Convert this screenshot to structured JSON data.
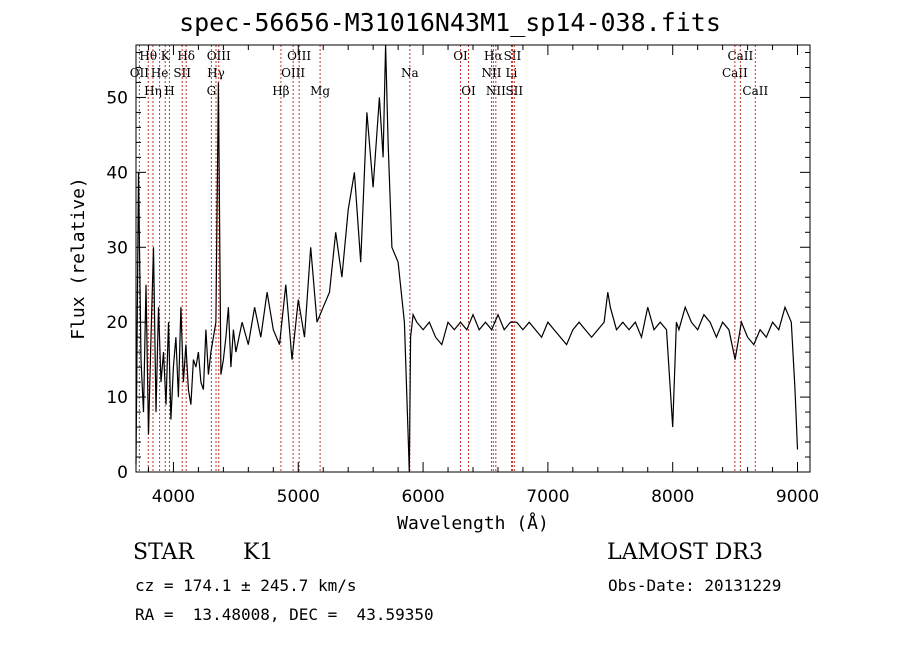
{
  "chart_data": {
    "type": "line",
    "title": "spec-56656-M31016N43M1_sp14-038.fits",
    "xlabel": "Wavelength (Å)",
    "ylabel": "Flux (relative)",
    "xlim": [
      3700,
      9100
    ],
    "ylim": [
      0,
      57
    ],
    "xticks": [
      4000,
      5000,
      6000,
      7000,
      8000,
      9000
    ],
    "yticks": [
      0,
      10,
      20,
      30,
      40,
      50
    ],
    "series": [
      {
        "name": "flux",
        "x": [
          3700,
          3720,
          3740,
          3760,
          3780,
          3800,
          3820,
          3840,
          3860,
          3880,
          3900,
          3920,
          3940,
          3960,
          3980,
          4000,
          4020,
          4040,
          4060,
          4080,
          4100,
          4120,
          4140,
          4160,
          4180,
          4200,
          4220,
          4240,
          4260,
          4280,
          4300,
          4320,
          4340,
          4360,
          4380,
          4400,
          4420,
          4440,
          4460,
          4480,
          4500,
          4550,
          4600,
          4650,
          4700,
          4750,
          4800,
          4850,
          4900,
          4950,
          5000,
          5050,
          5100,
          5150,
          5200,
          5250,
          5300,
          5350,
          5400,
          5450,
          5500,
          5550,
          5600,
          5650,
          5680,
          5700,
          5720,
          5750,
          5800,
          5850,
          5880,
          5890,
          5900,
          5920,
          5950,
          6000,
          6050,
          6100,
          6150,
          6200,
          6250,
          6300,
          6350,
          6400,
          6450,
          6500,
          6550,
          6600,
          6650,
          6700,
          6750,
          6800,
          6850,
          6900,
          6950,
          7000,
          7050,
          7100,
          7150,
          7200,
          7250,
          7300,
          7350,
          7400,
          7450,
          7480,
          7500,
          7550,
          7600,
          7650,
          7700,
          7750,
          7800,
          7850,
          7900,
          7950,
          8000,
          8030,
          8050,
          8100,
          8150,
          8200,
          8250,
          8300,
          8350,
          8400,
          8450,
          8500,
          8550,
          8600,
          8650,
          8700,
          8750,
          8800,
          8850,
          8900,
          8950,
          8980,
          9000
        ],
        "values": [
          1,
          40,
          15,
          8,
          25,
          5,
          18,
          30,
          8,
          22,
          12,
          16,
          9,
          20,
          7,
          14,
          18,
          10,
          22,
          12,
          17,
          11,
          9,
          15,
          14,
          16,
          12,
          11,
          19,
          13,
          16,
          18,
          20,
          52,
          13,
          15,
          18,
          22,
          14,
          19,
          16,
          20,
          17,
          22,
          18,
          24,
          19,
          17,
          25,
          15,
          23,
          18,
          30,
          20,
          22,
          24,
          32,
          26,
          35,
          40,
          28,
          48,
          38,
          50,
          42,
          57,
          44,
          30,
          28,
          20,
          5,
          0,
          18,
          21,
          20,
          19,
          20,
          18,
          17,
          20,
          19,
          20,
          19,
          21,
          19,
          20,
          19,
          21,
          19,
          20,
          20,
          19,
          20,
          19,
          18,
          20,
          19,
          18,
          17,
          19,
          20,
          19,
          18,
          19,
          20,
          24,
          22,
          19,
          20,
          19,
          20,
          18,
          22,
          19,
          20,
          19,
          6,
          20,
          19,
          22,
          20,
          19,
          21,
          20,
          18,
          20,
          19,
          15,
          20,
          18,
          17,
          19,
          18,
          20,
          19,
          22,
          20,
          11,
          3
        ]
      }
    ],
    "lines": [
      {
        "name": "OII",
        "x": 3727,
        "row": 2
      },
      {
        "name": "Hθ",
        "x": 3798,
        "row": 1
      },
      {
        "name": "Hη",
        "x": 3836,
        "row": 3
      },
      {
        "name": "K",
        "x": 3934,
        "row": 1
      },
      {
        "name": "He",
        "x": 3889,
        "row": 2
      },
      {
        "name": "H",
        "x": 3968,
        "row": 3
      },
      {
        "name": "SII",
        "x": 4070,
        "row": 2
      },
      {
        "name": "Hδ",
        "x": 4102,
        "row": 1
      },
      {
        "name": "G",
        "x": 4304,
        "row": 3
      },
      {
        "name": "Hγ",
        "x": 4341,
        "row": 2
      },
      {
        "name": "OIII",
        "x": 4363,
        "row": 1
      },
      {
        "name": "Hβ",
        "x": 4861,
        "row": 3
      },
      {
        "name": "OIII",
        "x": 4959,
        "row": 2
      },
      {
        "name": "OIII",
        "x": 5007,
        "row": 1
      },
      {
        "name": "Mg",
        "x": 5175,
        "row": 3
      },
      {
        "name": "Na",
        "x": 5894,
        "row": 2
      },
      {
        "name": "OI",
        "x": 6300,
        "row": 1
      },
      {
        "name": "OI",
        "x": 6364,
        "row": 3
      },
      {
        "name": "NII",
        "x": 6548,
        "row": 2
      },
      {
        "name": "Hα",
        "x": 6563,
        "row": 1
      },
      {
        "name": "NII",
        "x": 6583,
        "row": 3
      },
      {
        "name": "Li",
        "x": 6708,
        "row": 2
      },
      {
        "name": "SII",
        "x": 6716,
        "row": 1
      },
      {
        "name": "SII",
        "x": 6731,
        "row": 3
      },
      {
        "name": "CaII",
        "x": 8498,
        "row": 2
      },
      {
        "name": "CaII",
        "x": 8542,
        "row": 1
      },
      {
        "name": "CaII",
        "x": 8662,
        "row": 3
      }
    ]
  },
  "info": {
    "class": "STAR",
    "subclass": "K1",
    "survey": "LAMOST DR3",
    "cz": "cz = 174.1 ± 245.7 km/s",
    "obs_date": "Obs-Date: 20131229",
    "radec": "RA =  13.48008, DEC =  43.59350"
  },
  "colors": {
    "line_marker": "#c0392b",
    "spectrum": "#000000"
  }
}
